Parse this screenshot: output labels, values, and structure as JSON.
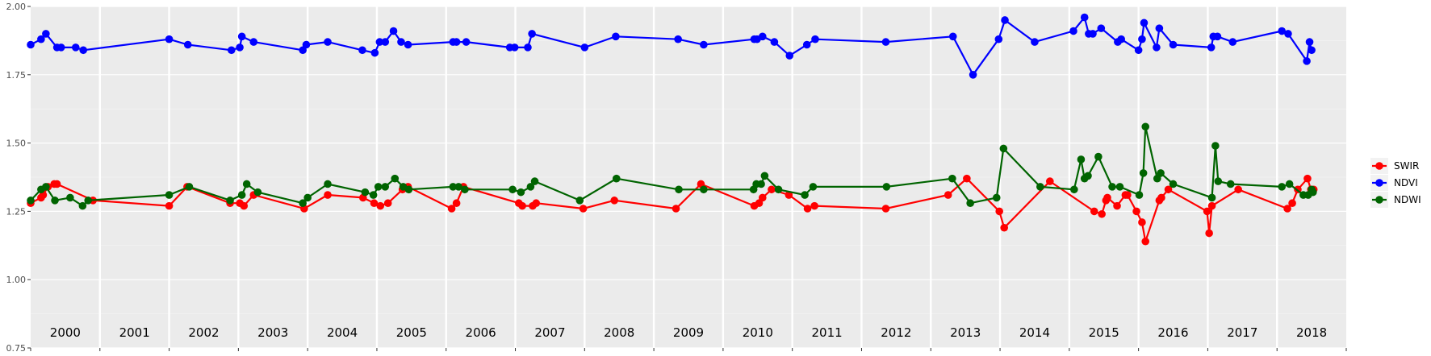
{
  "chart_data": {
    "type": "line",
    "title": "",
    "xlabel": "",
    "ylabel": "",
    "ylim": [
      0.75,
      2.0
    ],
    "yticks": [
      "0.75",
      "1.00",
      "1.25",
      "1.50",
      "1.75",
      "2.00"
    ],
    "xlim": [
      1999.5,
      2018.5
    ],
    "x_categories": [
      "2000",
      "2001",
      "2002",
      "2003",
      "2004",
      "2005",
      "2006",
      "2007",
      "2008",
      "2009",
      "2010",
      "2011",
      "2012",
      "2013",
      "2014",
      "2015",
      "2016",
      "2017",
      "2018"
    ],
    "grid": true,
    "legend_position": "right",
    "series": [
      {
        "name": "SWIR",
        "color": "#ff0000",
        "points": [
          [
            1999.5,
            1.28
          ],
          [
            1999.65,
            1.3
          ],
          [
            1999.68,
            1.31
          ],
          [
            1999.75,
            1.34
          ],
          [
            1999.84,
            1.35
          ],
          [
            1999.88,
            1.35
          ],
          [
            2000.4,
            1.29
          ],
          [
            2001.5,
            1.27
          ],
          [
            2001.76,
            1.34
          ],
          [
            2002.38,
            1.28
          ],
          [
            2002.52,
            1.28
          ],
          [
            2002.58,
            1.27
          ],
          [
            2002.72,
            1.31
          ],
          [
            2003.45,
            1.26
          ],
          [
            2003.79,
            1.31
          ],
          [
            2004.3,
            1.3
          ],
          [
            2004.46,
            1.28
          ],
          [
            2004.55,
            1.27
          ],
          [
            2004.66,
            1.28
          ],
          [
            2004.87,
            1.33
          ],
          [
            2004.95,
            1.34
          ],
          [
            2005.58,
            1.26
          ],
          [
            2005.65,
            1.28
          ],
          [
            2005.75,
            1.34
          ],
          [
            2006.55,
            1.28
          ],
          [
            2006.6,
            1.27
          ],
          [
            2006.75,
            1.27
          ],
          [
            2006.8,
            1.28
          ],
          [
            2007.48,
            1.26
          ],
          [
            2007.93,
            1.29
          ],
          [
            2008.82,
            1.26
          ],
          [
            2009.18,
            1.35
          ],
          [
            2009.95,
            1.27
          ],
          [
            2010.02,
            1.28
          ],
          [
            2010.07,
            1.3
          ],
          [
            2010.2,
            1.33
          ],
          [
            2010.45,
            1.31
          ],
          [
            2010.72,
            1.26
          ],
          [
            2010.82,
            1.27
          ],
          [
            2011.85,
            1.26
          ],
          [
            2012.75,
            1.31
          ],
          [
            2013.02,
            1.37
          ],
          [
            2013.49,
            1.25
          ],
          [
            2013.56,
            1.19
          ],
          [
            2014.22,
            1.36
          ],
          [
            2014.86,
            1.25
          ],
          [
            2014.97,
            1.24
          ],
          [
            2015.03,
            1.29
          ],
          [
            2015.05,
            1.3
          ],
          [
            2015.19,
            1.27
          ],
          [
            2015.31,
            1.31
          ],
          [
            2015.34,
            1.31
          ],
          [
            2015.47,
            1.25
          ],
          [
            2015.55,
            1.21
          ],
          [
            2015.6,
            1.14
          ],
          [
            2015.8,
            1.29
          ],
          [
            2015.83,
            1.3
          ],
          [
            2015.93,
            1.33
          ],
          [
            2016.49,
            1.25
          ],
          [
            2016.52,
            1.17
          ],
          [
            2016.56,
            1.27
          ],
          [
            2016.94,
            1.33
          ],
          [
            2017.65,
            1.26
          ],
          [
            2017.72,
            1.28
          ],
          [
            2017.8,
            1.33
          ],
          [
            2017.94,
            1.37
          ],
          [
            2017.99,
            1.33
          ],
          [
            2018.03,
            1.33
          ]
        ]
      },
      {
        "name": "NDVI",
        "color": "#0000ff",
        "points": [
          [
            1999.5,
            1.86
          ],
          [
            1999.65,
            1.88
          ],
          [
            1999.72,
            1.9
          ],
          [
            1999.88,
            1.85
          ],
          [
            1999.94,
            1.85
          ],
          [
            2000.15,
            1.85
          ],
          [
            2000.26,
            1.84
          ],
          [
            2001.5,
            1.88
          ],
          [
            2001.77,
            1.86
          ],
          [
            2002.4,
            1.84
          ],
          [
            2002.52,
            1.85
          ],
          [
            2002.55,
            1.89
          ],
          [
            2002.72,
            1.87
          ],
          [
            2003.43,
            1.84
          ],
          [
            2003.48,
            1.86
          ],
          [
            2003.79,
            1.87
          ],
          [
            2004.29,
            1.84
          ],
          [
            2004.47,
            1.83
          ],
          [
            2004.54,
            1.87
          ],
          [
            2004.62,
            1.87
          ],
          [
            2004.74,
            1.91
          ],
          [
            2004.85,
            1.87
          ],
          [
            2004.95,
            1.86
          ],
          [
            2005.6,
            1.87
          ],
          [
            2005.65,
            1.87
          ],
          [
            2005.79,
            1.87
          ],
          [
            2006.42,
            1.85
          ],
          [
            2006.49,
            1.85
          ],
          [
            2006.68,
            1.85
          ],
          [
            2006.74,
            1.9
          ],
          [
            2007.5,
            1.85
          ],
          [
            2007.95,
            1.89
          ],
          [
            2008.85,
            1.88
          ],
          [
            2009.22,
            1.86
          ],
          [
            2009.95,
            1.88
          ],
          [
            2009.99,
            1.88
          ],
          [
            2010.07,
            1.89
          ],
          [
            2010.24,
            1.87
          ],
          [
            2010.46,
            1.82
          ],
          [
            2010.71,
            1.86
          ],
          [
            2010.83,
            1.88
          ],
          [
            2011.85,
            1.87
          ],
          [
            2012.82,
            1.89
          ],
          [
            2013.11,
            1.75
          ],
          [
            2013.48,
            1.88
          ],
          [
            2013.57,
            1.95
          ],
          [
            2014.0,
            1.87
          ],
          [
            2014.56,
            1.91
          ],
          [
            2014.72,
            1.96
          ],
          [
            2014.78,
            1.9
          ],
          [
            2014.84,
            1.9
          ],
          [
            2014.96,
            1.92
          ],
          [
            2015.2,
            1.87
          ],
          [
            2015.25,
            1.88
          ],
          [
            2015.5,
            1.84
          ],
          [
            2015.55,
            1.88
          ],
          [
            2015.58,
            1.94
          ],
          [
            2015.76,
            1.85
          ],
          [
            2015.8,
            1.92
          ],
          [
            2016.0,
            1.86
          ],
          [
            2016.55,
            1.85
          ],
          [
            2016.58,
            1.89
          ],
          [
            2016.64,
            1.89
          ],
          [
            2016.86,
            1.87
          ],
          [
            2017.57,
            1.91
          ],
          [
            2017.66,
            1.9
          ],
          [
            2017.93,
            1.8
          ],
          [
            2017.97,
            1.87
          ],
          [
            2018.0,
            1.84
          ]
        ]
      },
      {
        "name": "NDWI",
        "color": "#006400",
        "points": [
          [
            1999.5,
            1.29
          ],
          [
            1999.65,
            1.33
          ],
          [
            1999.72,
            1.34
          ],
          [
            1999.85,
            1.29
          ],
          [
            2000.07,
            1.3
          ],
          [
            2000.25,
            1.27
          ],
          [
            2000.33,
            1.29
          ],
          [
            2001.5,
            1.31
          ],
          [
            2001.79,
            1.34
          ],
          [
            2002.38,
            1.29
          ],
          [
            2002.55,
            1.31
          ],
          [
            2002.62,
            1.35
          ],
          [
            2002.78,
            1.32
          ],
          [
            2003.43,
            1.28
          ],
          [
            2003.5,
            1.3
          ],
          [
            2003.79,
            1.35
          ],
          [
            2004.33,
            1.32
          ],
          [
            2004.45,
            1.31
          ],
          [
            2004.52,
            1.34
          ],
          [
            2004.62,
            1.34
          ],
          [
            2004.76,
            1.37
          ],
          [
            2004.88,
            1.34
          ],
          [
            2004.96,
            1.33
          ],
          [
            2005.6,
            1.34
          ],
          [
            2005.68,
            1.34
          ],
          [
            2005.77,
            1.33
          ],
          [
            2006.46,
            1.33
          ],
          [
            2006.58,
            1.32
          ],
          [
            2006.72,
            1.34
          ],
          [
            2006.78,
            1.36
          ],
          [
            2007.43,
            1.29
          ],
          [
            2007.96,
            1.37
          ],
          [
            2008.86,
            1.33
          ],
          [
            2009.22,
            1.33
          ],
          [
            2009.94,
            1.33
          ],
          [
            2009.98,
            1.35
          ],
          [
            2010.05,
            1.35
          ],
          [
            2010.1,
            1.38
          ],
          [
            2010.3,
            1.33
          ],
          [
            2010.68,
            1.31
          ],
          [
            2010.8,
            1.34
          ],
          [
            2011.86,
            1.34
          ],
          [
            2012.81,
            1.37
          ],
          [
            2013.07,
            1.28
          ],
          [
            2013.45,
            1.3
          ],
          [
            2013.55,
            1.48
          ],
          [
            2014.08,
            1.34
          ],
          [
            2014.57,
            1.33
          ],
          [
            2014.67,
            1.44
          ],
          [
            2014.72,
            1.37
          ],
          [
            2014.77,
            1.38
          ],
          [
            2014.92,
            1.45
          ],
          [
            2015.12,
            1.34
          ],
          [
            2015.23,
            1.34
          ],
          [
            2015.51,
            1.31
          ],
          [
            2015.57,
            1.39
          ],
          [
            2015.6,
            1.56
          ],
          [
            2015.77,
            1.37
          ],
          [
            2015.82,
            1.39
          ],
          [
            2016.0,
            1.35
          ],
          [
            2016.56,
            1.3
          ],
          [
            2016.61,
            1.49
          ],
          [
            2016.65,
            1.36
          ],
          [
            2016.83,
            1.35
          ],
          [
            2017.57,
            1.34
          ],
          [
            2017.68,
            1.35
          ],
          [
            2017.88,
            1.31
          ],
          [
            2017.95,
            1.31
          ],
          [
            2018.0,
            1.33
          ],
          [
            2018.02,
            1.32
          ]
        ]
      }
    ]
  }
}
